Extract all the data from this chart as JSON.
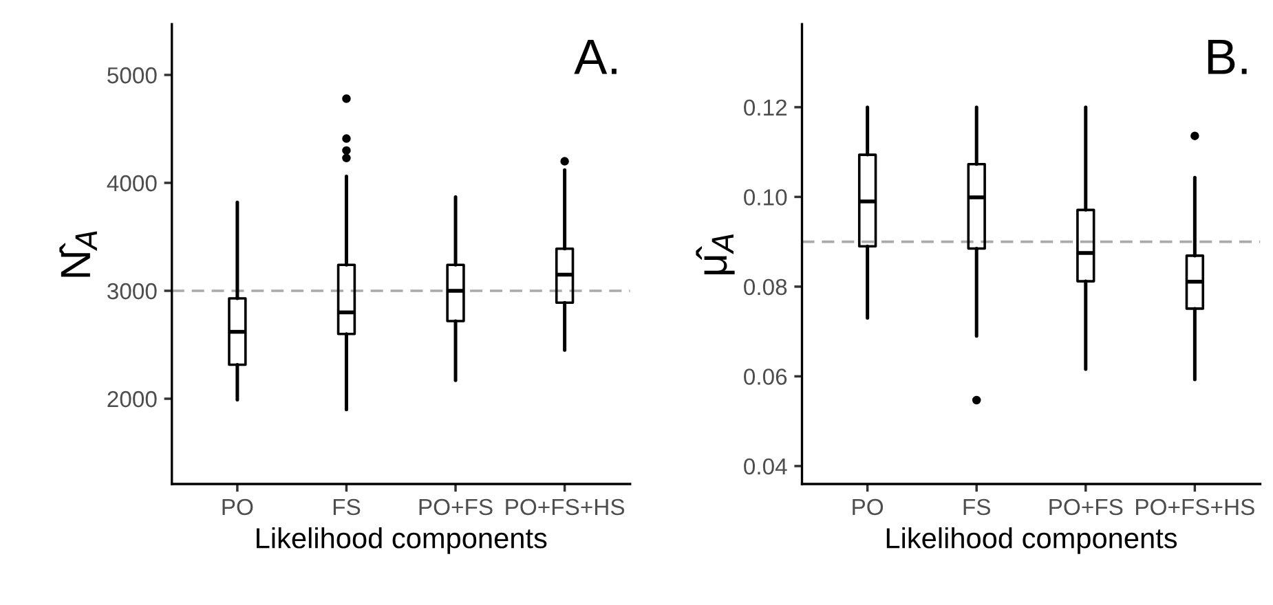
{
  "chart_data": [
    {
      "type": "box",
      "categories": [
        "PO",
        "FS",
        "PO+FS",
        "PO+FS+HS"
      ],
      "xlabel": "Likelihood components",
      "ylabel": "N̂$_{A}$",
      "annotations": [
        "A."
      ],
      "ylim": [
        1210,
        5470
      ],
      "yticks": [
        2000,
        3000,
        4000,
        5000
      ],
      "grid": false,
      "legend": false,
      "boxes": [
        {
          "low": 1990,
          "q1": 2315,
          "median": 2620,
          "q3": 2930,
          "high": 3820
        },
        {
          "low": 1900,
          "q1": 2600,
          "median": 2800,
          "q3": 3240,
          "high": 4060,
          "outliers": [
            4780,
            4410,
            4300,
            4230
          ]
        },
        {
          "low": 2170,
          "q1": 2720,
          "median": 3000,
          "q3": 3240,
          "high": 3870
        },
        {
          "low": 2450,
          "q1": 2890,
          "median": 3150,
          "q3": 3390,
          "high": 4120,
          "outliers": [
            4200
          ]
        }
      ],
      "ref_lines": [
        {
          "axis": "y",
          "value": 3000,
          "label": null,
          "color": "#aaaaaa",
          "line_style": "dashed"
        }
      ]
    },
    {
      "type": "box",
      "categories": [
        "PO",
        "FS",
        "PO+FS",
        "PO+FS+HS"
      ],
      "xlabel": "Likelihood components",
      "ylabel": "μ̂$_{A}$",
      "annotations": [
        "B."
      ],
      "ylim": [
        0.036,
        0.1385
      ],
      "yticks": [
        {
          "value": 0.04,
          "label": "0.04"
        },
        {
          "value": 0.06,
          "label": "0.06"
        },
        {
          "value": 0.08,
          "label": "0.08"
        },
        {
          "value": 0.1,
          "label": "0.10"
        },
        {
          "value": 0.12,
          "label": "0.12"
        }
      ],
      "grid": false,
      "legend": false,
      "boxes": [
        {
          "low": 0.073,
          "q1": 0.089,
          "median": 0.099,
          "q3": 0.1094,
          "high": 0.12
        },
        {
          "low": 0.069,
          "q1": 0.0885,
          "median": 0.0999,
          "q3": 0.1073,
          "high": 0.12,
          "outliers": [
            0.0547
          ]
        },
        {
          "low": 0.0616,
          "q1": 0.0812,
          "median": 0.0875,
          "q3": 0.0971,
          "high": 0.12
        },
        {
          "low": 0.0593,
          "q1": 0.0751,
          "median": 0.0811,
          "q3": 0.0869,
          "high": 0.1043,
          "outliers": [
            0.1136
          ]
        }
      ],
      "ref_lines": [
        {
          "axis": "y",
          "value": 0.09,
          "label": null,
          "color": "#aaaaaa",
          "line_style": "dashed"
        }
      ]
    }
  ]
}
